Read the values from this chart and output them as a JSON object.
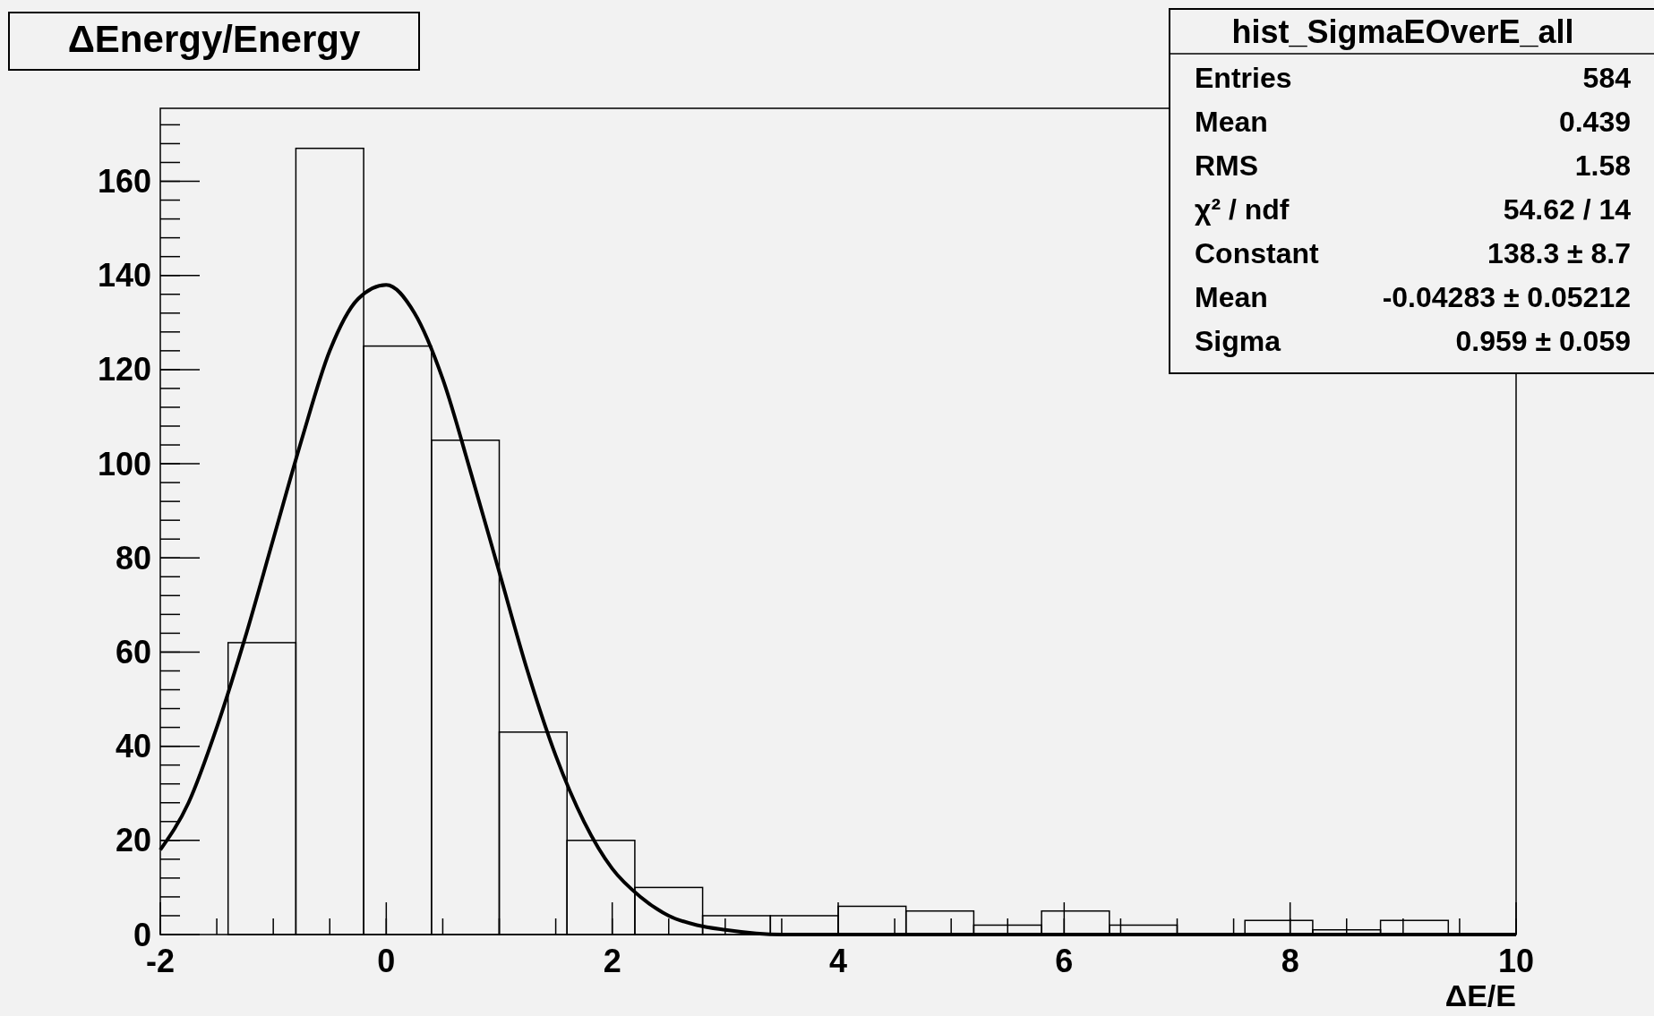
{
  "chart_data": {
    "type": "histogram",
    "title": "ΔEnergy/Energy",
    "xlabel": "ΔE/E",
    "bins": [
      -2,
      -1.4,
      -0.8,
      -0.2,
      0.4,
      1.0,
      1.6,
      2.2,
      2.8,
      3.4,
      4.0,
      4.6,
      5.2,
      5.8,
      6.4,
      7.0,
      7.6,
      8.2,
      8.8,
      9.4,
      10
    ],
    "values": [
      0,
      62,
      167,
      125,
      105,
      43,
      20,
      10,
      4,
      4,
      6,
      5,
      2,
      5,
      2,
      0,
      3,
      1,
      3,
      0
    ],
    "color": "#000000",
    "series": [
      {
        "type": "line",
        "color": "#000000",
        "x": [
          -2,
          -1.75,
          -1.5,
          -1.25,
          -1,
          -0.75,
          -0.5,
          -0.25,
          0,
          0.25,
          0.5,
          0.75,
          1,
          1.25,
          1.5,
          1.75,
          2,
          2.25,
          2.5,
          2.75,
          3,
          3.5,
          4,
          6,
          8,
          10
        ],
        "values": [
          18,
          28,
          44,
          63,
          84,
          105,
          124,
          135,
          138,
          132,
          118,
          98,
          77,
          56,
          38,
          24,
          14,
          8,
          4,
          2,
          1,
          0,
          0,
          0,
          0,
          0
        ]
      }
    ],
    "xlim": [
      -2,
      10
    ],
    "xticks": [
      -2,
      0,
      2,
      4,
      6,
      8,
      10
    ],
    "ylim": [
      0,
      175.5
    ],
    "yticks": [
      0,
      20,
      40,
      60,
      80,
      100,
      120,
      140,
      160
    ],
    "grid": false,
    "annotations": [
      "hist_SigmaEOverE_all",
      "Entries\t584",
      "Mean\t0.439",
      "RMS\t1.58",
      "χ² / ndf\t54.62 / 14",
      "Constant\t138.3 ± 8.7",
      "Mean\t-0.04283 ± 0.05212",
      "Sigma\t0.959 ± 0.059"
    ]
  }
}
